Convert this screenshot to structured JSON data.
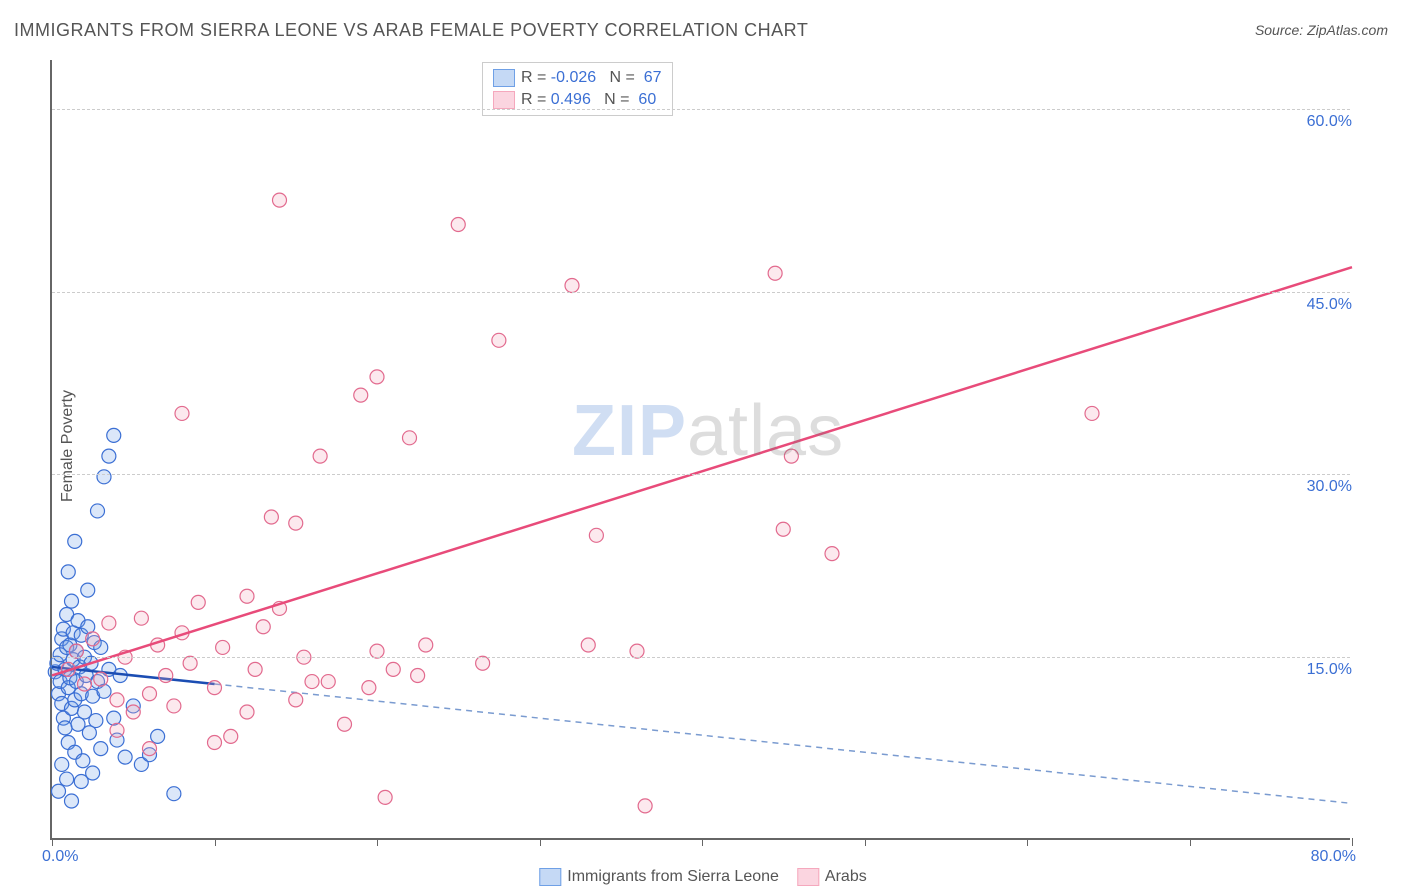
{
  "title": "IMMIGRANTS FROM SIERRA LEONE VS ARAB FEMALE POVERTY CORRELATION CHART",
  "source": "Source: ZipAtlas.com",
  "ylabel": "Female Poverty",
  "watermark_a": "ZIP",
  "watermark_b": "atlas",
  "chart": {
    "type": "scatter",
    "xlim": [
      0,
      80
    ],
    "ylim": [
      0,
      64
    ],
    "xticks": [
      0,
      10,
      20,
      30,
      40,
      50,
      60,
      70,
      80
    ],
    "yticks": [
      15,
      30,
      45,
      60
    ],
    "xtick_labels": {
      "0": "0.0%",
      "80": "80.0%"
    },
    "ytick_labels": {
      "15": "15.0%",
      "30": "30.0%",
      "45": "45.0%",
      "60": "60.0%"
    },
    "grid_color": "#cccccc",
    "axis_color": "#666666",
    "label_color": "#3b6fd4",
    "background_color": "#ffffff",
    "marker_radius": 7,
    "marker_fill_opacity": 0.25,
    "marker_stroke_width": 1.2,
    "series": [
      {
        "name": "Immigrants from Sierra Leone",
        "color": "#6fa0e6",
        "stroke": "#3b6fd4",
        "trend_color": "#1b4db3",
        "trend_dashed_color": "#7a9bd0",
        "R": -0.026,
        "N": 67,
        "trend": {
          "x1": 0,
          "y1": 14.2,
          "x2": 80,
          "y2": 3.0
        },
        "trend_solid_until_x": 10,
        "points": [
          [
            0.2,
            13.8
          ],
          [
            0.3,
            14.5
          ],
          [
            0.4,
            12.0
          ],
          [
            0.5,
            15.2
          ],
          [
            0.5,
            13.0
          ],
          [
            0.6,
            16.5
          ],
          [
            0.6,
            11.2
          ],
          [
            0.7,
            10.0
          ],
          [
            0.7,
            17.3
          ],
          [
            0.8,
            14.0
          ],
          [
            0.8,
            9.2
          ],
          [
            0.9,
            18.5
          ],
          [
            0.9,
            15.8
          ],
          [
            1.0,
            12.5
          ],
          [
            1.0,
            8.0
          ],
          [
            1.1,
            16.0
          ],
          [
            1.1,
            13.3
          ],
          [
            1.2,
            19.6
          ],
          [
            1.2,
            10.8
          ],
          [
            1.3,
            14.8
          ],
          [
            1.3,
            17.0
          ],
          [
            1.4,
            11.5
          ],
          [
            1.4,
            7.2
          ],
          [
            1.5,
            15.5
          ],
          [
            1.5,
            13.0
          ],
          [
            1.6,
            18.0
          ],
          [
            1.6,
            9.5
          ],
          [
            1.7,
            14.2
          ],
          [
            1.8,
            16.8
          ],
          [
            1.8,
            12.0
          ],
          [
            1.9,
            6.5
          ],
          [
            2.0,
            15.0
          ],
          [
            2.0,
            10.5
          ],
          [
            2.1,
            13.5
          ],
          [
            2.2,
            17.5
          ],
          [
            2.3,
            8.8
          ],
          [
            2.4,
            14.5
          ],
          [
            2.5,
            11.8
          ],
          [
            2.6,
            16.2
          ],
          [
            2.7,
            9.8
          ],
          [
            2.8,
            13.0
          ],
          [
            3.0,
            15.8
          ],
          [
            3.0,
            7.5
          ],
          [
            3.2,
            12.2
          ],
          [
            3.5,
            14.0
          ],
          [
            3.8,
            10.0
          ],
          [
            4.0,
            8.2
          ],
          [
            4.2,
            13.5
          ],
          [
            4.5,
            6.8
          ],
          [
            5.0,
            11.0
          ],
          [
            2.2,
            20.5
          ],
          [
            1.0,
            22.0
          ],
          [
            1.4,
            24.5
          ],
          [
            2.8,
            27.0
          ],
          [
            3.2,
            29.8
          ],
          [
            3.5,
            31.5
          ],
          [
            3.8,
            33.2
          ],
          [
            1.8,
            4.8
          ],
          [
            2.5,
            5.5
          ],
          [
            5.5,
            6.2
          ],
          [
            6.0,
            7.0
          ],
          [
            7.5,
            3.8
          ],
          [
            1.2,
            3.2
          ],
          [
            0.9,
            5.0
          ],
          [
            0.6,
            6.2
          ],
          [
            0.4,
            4.0
          ],
          [
            6.5,
            8.5
          ]
        ]
      },
      {
        "name": "Arabs",
        "color": "#f5a8bd",
        "stroke": "#e26a8e",
        "trend_color": "#e84b7a",
        "R": 0.496,
        "N": 60,
        "trend": {
          "x1": 0,
          "y1": 13.5,
          "x2": 80,
          "y2": 47.0
        },
        "points": [
          [
            1.0,
            14.0
          ],
          [
            1.5,
            15.5
          ],
          [
            2.0,
            12.8
          ],
          [
            2.5,
            16.5
          ],
          [
            3.0,
            13.2
          ],
          [
            3.5,
            17.8
          ],
          [
            4.0,
            11.5
          ],
          [
            4.5,
            15.0
          ],
          [
            5.0,
            10.5
          ],
          [
            5.5,
            18.2
          ],
          [
            6.0,
            12.0
          ],
          [
            6.5,
            16.0
          ],
          [
            7.0,
            13.5
          ],
          [
            7.5,
            11.0
          ],
          [
            8.0,
            17.0
          ],
          [
            8.5,
            14.5
          ],
          [
            9.0,
            19.5
          ],
          [
            10.0,
            12.5
          ],
          [
            10.5,
            15.8
          ],
          [
            11.0,
            8.5
          ],
          [
            12.0,
            20.0
          ],
          [
            12.5,
            14.0
          ],
          [
            13.0,
            17.5
          ],
          [
            14.0,
            19.0
          ],
          [
            15.0,
            11.5
          ],
          [
            16.0,
            13.0
          ],
          [
            8.0,
            35.0
          ],
          [
            14.0,
            52.5
          ],
          [
            13.5,
            26.5
          ],
          [
            15.0,
            26.0
          ],
          [
            16.5,
            31.5
          ],
          [
            19.0,
            36.5
          ],
          [
            19.5,
            12.5
          ],
          [
            20.0,
            38.0
          ],
          [
            20.0,
            15.5
          ],
          [
            22.0,
            33.0
          ],
          [
            23.0,
            16.0
          ],
          [
            25.0,
            50.5
          ],
          [
            26.5,
            14.5
          ],
          [
            27.5,
            41.0
          ],
          [
            32.0,
            45.5
          ],
          [
            33.0,
            16.0
          ],
          [
            33.5,
            25.0
          ],
          [
            36.5,
            2.8
          ],
          [
            36.0,
            15.5
          ],
          [
            44.5,
            46.5
          ],
          [
            45.0,
            25.5
          ],
          [
            45.5,
            31.5
          ],
          [
            48.0,
            23.5
          ],
          [
            64.0,
            35.0
          ],
          [
            20.5,
            3.5
          ],
          [
            10.0,
            8.0
          ],
          [
            18.0,
            9.5
          ],
          [
            22.5,
            13.5
          ],
          [
            6.0,
            7.5
          ],
          [
            4.0,
            9.0
          ],
          [
            12.0,
            10.5
          ],
          [
            17.0,
            13.0
          ],
          [
            15.5,
            15.0
          ],
          [
            21.0,
            14.0
          ]
        ]
      }
    ]
  },
  "legend_top": {
    "rows": [
      {
        "swatch_fill": "#c5d9f5",
        "swatch_stroke": "#6fa0e6",
        "r_label": "R =",
        "r_value": "-0.026",
        "n_label": "N =",
        "n_value": "67"
      },
      {
        "swatch_fill": "#fbd5e0",
        "swatch_stroke": "#f5a8bd",
        "r_label": "R =",
        "r_value": "0.496",
        "n_label": "N =",
        "n_value": "60"
      }
    ],
    "text_color": "#555555",
    "value_color": "#3b6fd4"
  },
  "legend_bottom": {
    "items": [
      {
        "swatch_fill": "#c5d9f5",
        "swatch_stroke": "#6fa0e6",
        "label": "Immigrants from Sierra Leone"
      },
      {
        "swatch_fill": "#fbd5e0",
        "swatch_stroke": "#f5a8bd",
        "label": "Arabs"
      }
    ]
  }
}
